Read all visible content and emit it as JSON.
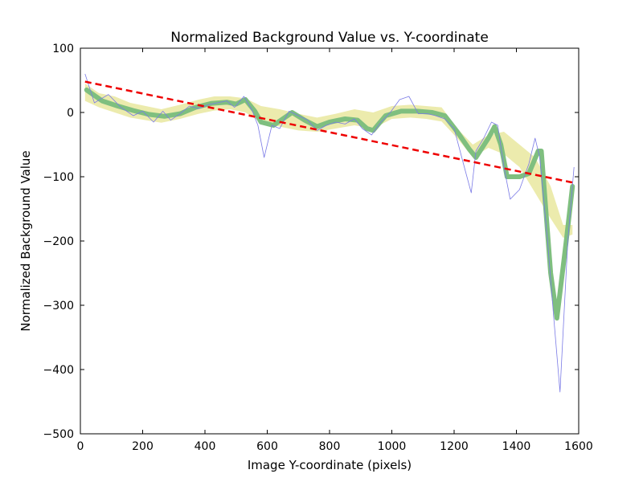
{
  "chart_data": {
    "type": "line",
    "title": "Normalized Background Value vs. Y-coordinate",
    "xlabel": "Image Y-coordinate (pixels)",
    "ylabel": "Normalized Background Value",
    "xlim": [
      0,
      1600
    ],
    "ylim": [
      -500,
      100
    ],
    "xticks": [
      0,
      200,
      400,
      600,
      800,
      1000,
      1200,
      1400,
      1600
    ],
    "yticks": [
      -500,
      -400,
      -300,
      -200,
      -100,
      0,
      100
    ],
    "xtick_labels": [
      "0",
      "200",
      "400",
      "600",
      "800",
      "1000",
      "1200",
      "1400",
      "1600"
    ],
    "ytick_labels": [
      "−500",
      "−400",
      "−300",
      "−200",
      "−100",
      "0",
      "100"
    ],
    "grid": false,
    "legend": "none",
    "series": [
      {
        "kind": "band",
        "color": "#d4d24a",
        "x": [
          15,
          60,
          110,
          160,
          210,
          260,
          320,
          380,
          430,
          480,
          530,
          580,
          640,
          700,
          760,
          820,
          880,
          940,
          1000,
          1060,
          1110,
          1160,
          1210,
          1260,
          1310,
          1360,
          1410,
          1460,
          1510,
          1550,
          1580
        ],
        "upper": [
          45,
          30,
          25,
          15,
          10,
          5,
          12,
          20,
          25,
          25,
          22,
          10,
          5,
          -2,
          -8,
          -2,
          5,
          0,
          10,
          12,
          10,
          8,
          -25,
          -50,
          -35,
          -30,
          -50,
          -70,
          -115,
          -175,
          -175
        ],
        "lower": [
          18,
          8,
          0,
          -8,
          -12,
          -16,
          -10,
          -2,
          3,
          5,
          0,
          -15,
          -22,
          -28,
          -30,
          -25,
          -20,
          -25,
          -10,
          -8,
          -10,
          -14,
          -40,
          -70,
          -55,
          -65,
          -85,
          -125,
          -165,
          -195,
          -190
        ]
      },
      {
        "kind": "line",
        "color": "#7fbf7f",
        "x": [
          20,
          70,
          120,
          170,
          220,
          270,
          320,
          370,
          420,
          470,
          500,
          530,
          560,
          580,
          620,
          680,
          720,
          760,
          800,
          850,
          890,
          920,
          940,
          980,
          1030,
          1080,
          1130,
          1170,
          1210,
          1250,
          1270,
          1310,
          1330,
          1350,
          1370,
          1410,
          1440,
          1470,
          1480,
          1510,
          1530,
          1560,
          1580
        ],
        "y": [
          35,
          18,
          10,
          3,
          -3,
          -6,
          -2,
          8,
          14,
          16,
          13,
          20,
          2,
          -15,
          -20,
          0,
          -12,
          -22,
          -15,
          -10,
          -12,
          -25,
          -28,
          -5,
          2,
          2,
          0,
          -5,
          -30,
          -58,
          -70,
          -40,
          -22,
          -50,
          -100,
          -100,
          -95,
          -60,
          -60,
          -250,
          -320,
          -200,
          -115
        ]
      },
      {
        "kind": "line",
        "color": "#7a7ae6",
        "x": [
          15,
          45,
          90,
          130,
          170,
          200,
          235,
          265,
          290,
          320,
          350,
          380,
          410,
          440,
          470,
          495,
          525,
          550,
          570,
          590,
          615,
          640,
          670,
          700,
          730,
          760,
          790,
          820,
          850,
          880,
          905,
          935,
          965,
          995,
          1025,
          1055,
          1085,
          1115,
          1140,
          1170,
          1200,
          1230,
          1255,
          1270,
          1295,
          1320,
          1340,
          1360,
          1380,
          1410,
          1440,
          1460,
          1475,
          1500,
          1520,
          1540,
          1565,
          1585
        ],
        "y": [
          60,
          15,
          28,
          8,
          -5,
          2,
          -15,
          2,
          -12,
          -2,
          10,
          6,
          12,
          15,
          18,
          8,
          25,
          5,
          -20,
          -70,
          -20,
          -25,
          2,
          -5,
          -12,
          -28,
          -20,
          -15,
          -18,
          -10,
          -25,
          -35,
          -15,
          0,
          20,
          25,
          -2,
          -2,
          -5,
          -10,
          -25,
          -80,
          -125,
          -60,
          -40,
          -15,
          -20,
          -85,
          -135,
          -120,
          -80,
          -40,
          -70,
          -200,
          -320,
          -435,
          -200,
          -85
        ]
      },
      {
        "kind": "fit",
        "color": "#ee0000",
        "x": [
          15,
          1590
        ],
        "y": [
          48,
          -110
        ]
      }
    ]
  }
}
